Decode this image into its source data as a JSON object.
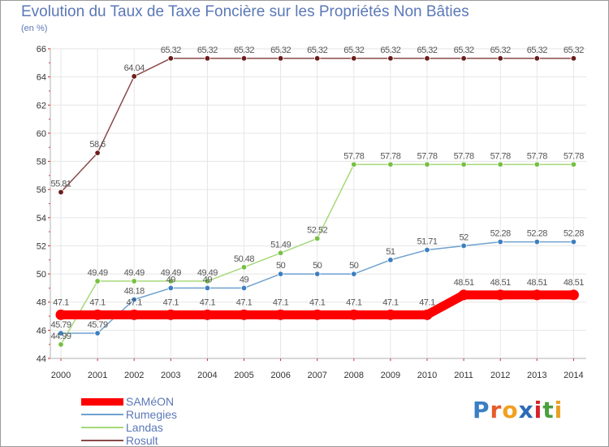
{
  "header": {
    "title": "Evolution du Taux de Taxe Foncière sur les Propriétés Non Bâties",
    "unit": "(en %)"
  },
  "logo": {
    "text": "Proxiti",
    "letter_colors": [
      "#3a7ec4",
      "#e85a2a",
      "#f0a020",
      "#2a6ab8",
      "#d8222a",
      "#4aa040",
      "#e8a020"
    ]
  },
  "colors": {
    "grid": "#e6e6e6",
    "axis": "#b0b0b0",
    "tick_text": "#333333",
    "label_text": "#555555",
    "tick_mark": "#cc2222"
  },
  "chart_data": {
    "type": "line",
    "x": [
      "2000",
      "2001",
      "2002",
      "2003",
      "2004",
      "2005",
      "2006",
      "2007",
      "2008",
      "2009",
      "2010",
      "2011",
      "2012",
      "2013",
      "2014"
    ],
    "ylim": [
      44,
      66
    ],
    "yticks": [
      44,
      46,
      48,
      50,
      52,
      54,
      56,
      58,
      60,
      62,
      64,
      66
    ],
    "grid": true,
    "legend_position": "bottom-left",
    "series": [
      {
        "name": "SAMéON",
        "color": "#ff0000",
        "marker_color": "#ff0000",
        "thick": true,
        "values": [
          47.1,
          47.1,
          47.1,
          47.1,
          47.1,
          47.1,
          47.1,
          47.1,
          47.1,
          47.1,
          47.1,
          48.51,
          48.51,
          48.51,
          48.51
        ],
        "labels": [
          "47.1",
          "47.1",
          "47.1",
          "47.1",
          "47.1",
          "47.1",
          "47.1",
          "47.1",
          "47.1",
          "47.1",
          "47.1",
          "48.51",
          "48.51",
          "48.51",
          "48.51"
        ]
      },
      {
        "name": "Rumegies",
        "color": "#6fa1cf",
        "marker_color": "#3d7fbf",
        "thick": false,
        "values": [
          45.79,
          45.79,
          48.18,
          49,
          49,
          49,
          50,
          50,
          50,
          51,
          51.71,
          52,
          52.28,
          52.28,
          52.28
        ],
        "labels": [
          "45.79",
          "45.79",
          "48.18",
          "49",
          "49",
          "49",
          "50",
          "50",
          "50",
          "51",
          "51.71",
          "52",
          "52.28",
          "52.28",
          "52.28"
        ]
      },
      {
        "name": "Landas",
        "color": "#a6d97a",
        "marker_color": "#77c043",
        "thick": false,
        "values": [
          44.99,
          49.49,
          49.49,
          49.49,
          49.49,
          50.48,
          51.49,
          52.52,
          57.78,
          57.78,
          57.78,
          57.78,
          57.78,
          57.78,
          57.78
        ],
        "labels": [
          "44.99",
          "49.49",
          "49.49",
          "49.49",
          "49.49",
          "50.48",
          "51.49",
          "52.52",
          "57.78",
          "57.78",
          "57.78",
          "57.78",
          "57.78",
          "57.78",
          "57.78"
        ]
      },
      {
        "name": "Rosult",
        "color": "#8a4a4a",
        "marker_color": "#6b1e1e",
        "thick": false,
        "values": [
          55.81,
          58.6,
          64.04,
          65.32,
          65.32,
          65.32,
          65.32,
          65.32,
          65.32,
          65.32,
          65.32,
          65.32,
          65.32,
          65.32,
          65.32
        ],
        "labels": [
          "55.81",
          "58.6",
          "64.04",
          "65.32",
          "65.32",
          "65.32",
          "65.32",
          "65.32",
          "65.32",
          "65.32",
          "65.32",
          "65.32",
          "65.32",
          "65.32",
          "65.32"
        ]
      }
    ]
  }
}
